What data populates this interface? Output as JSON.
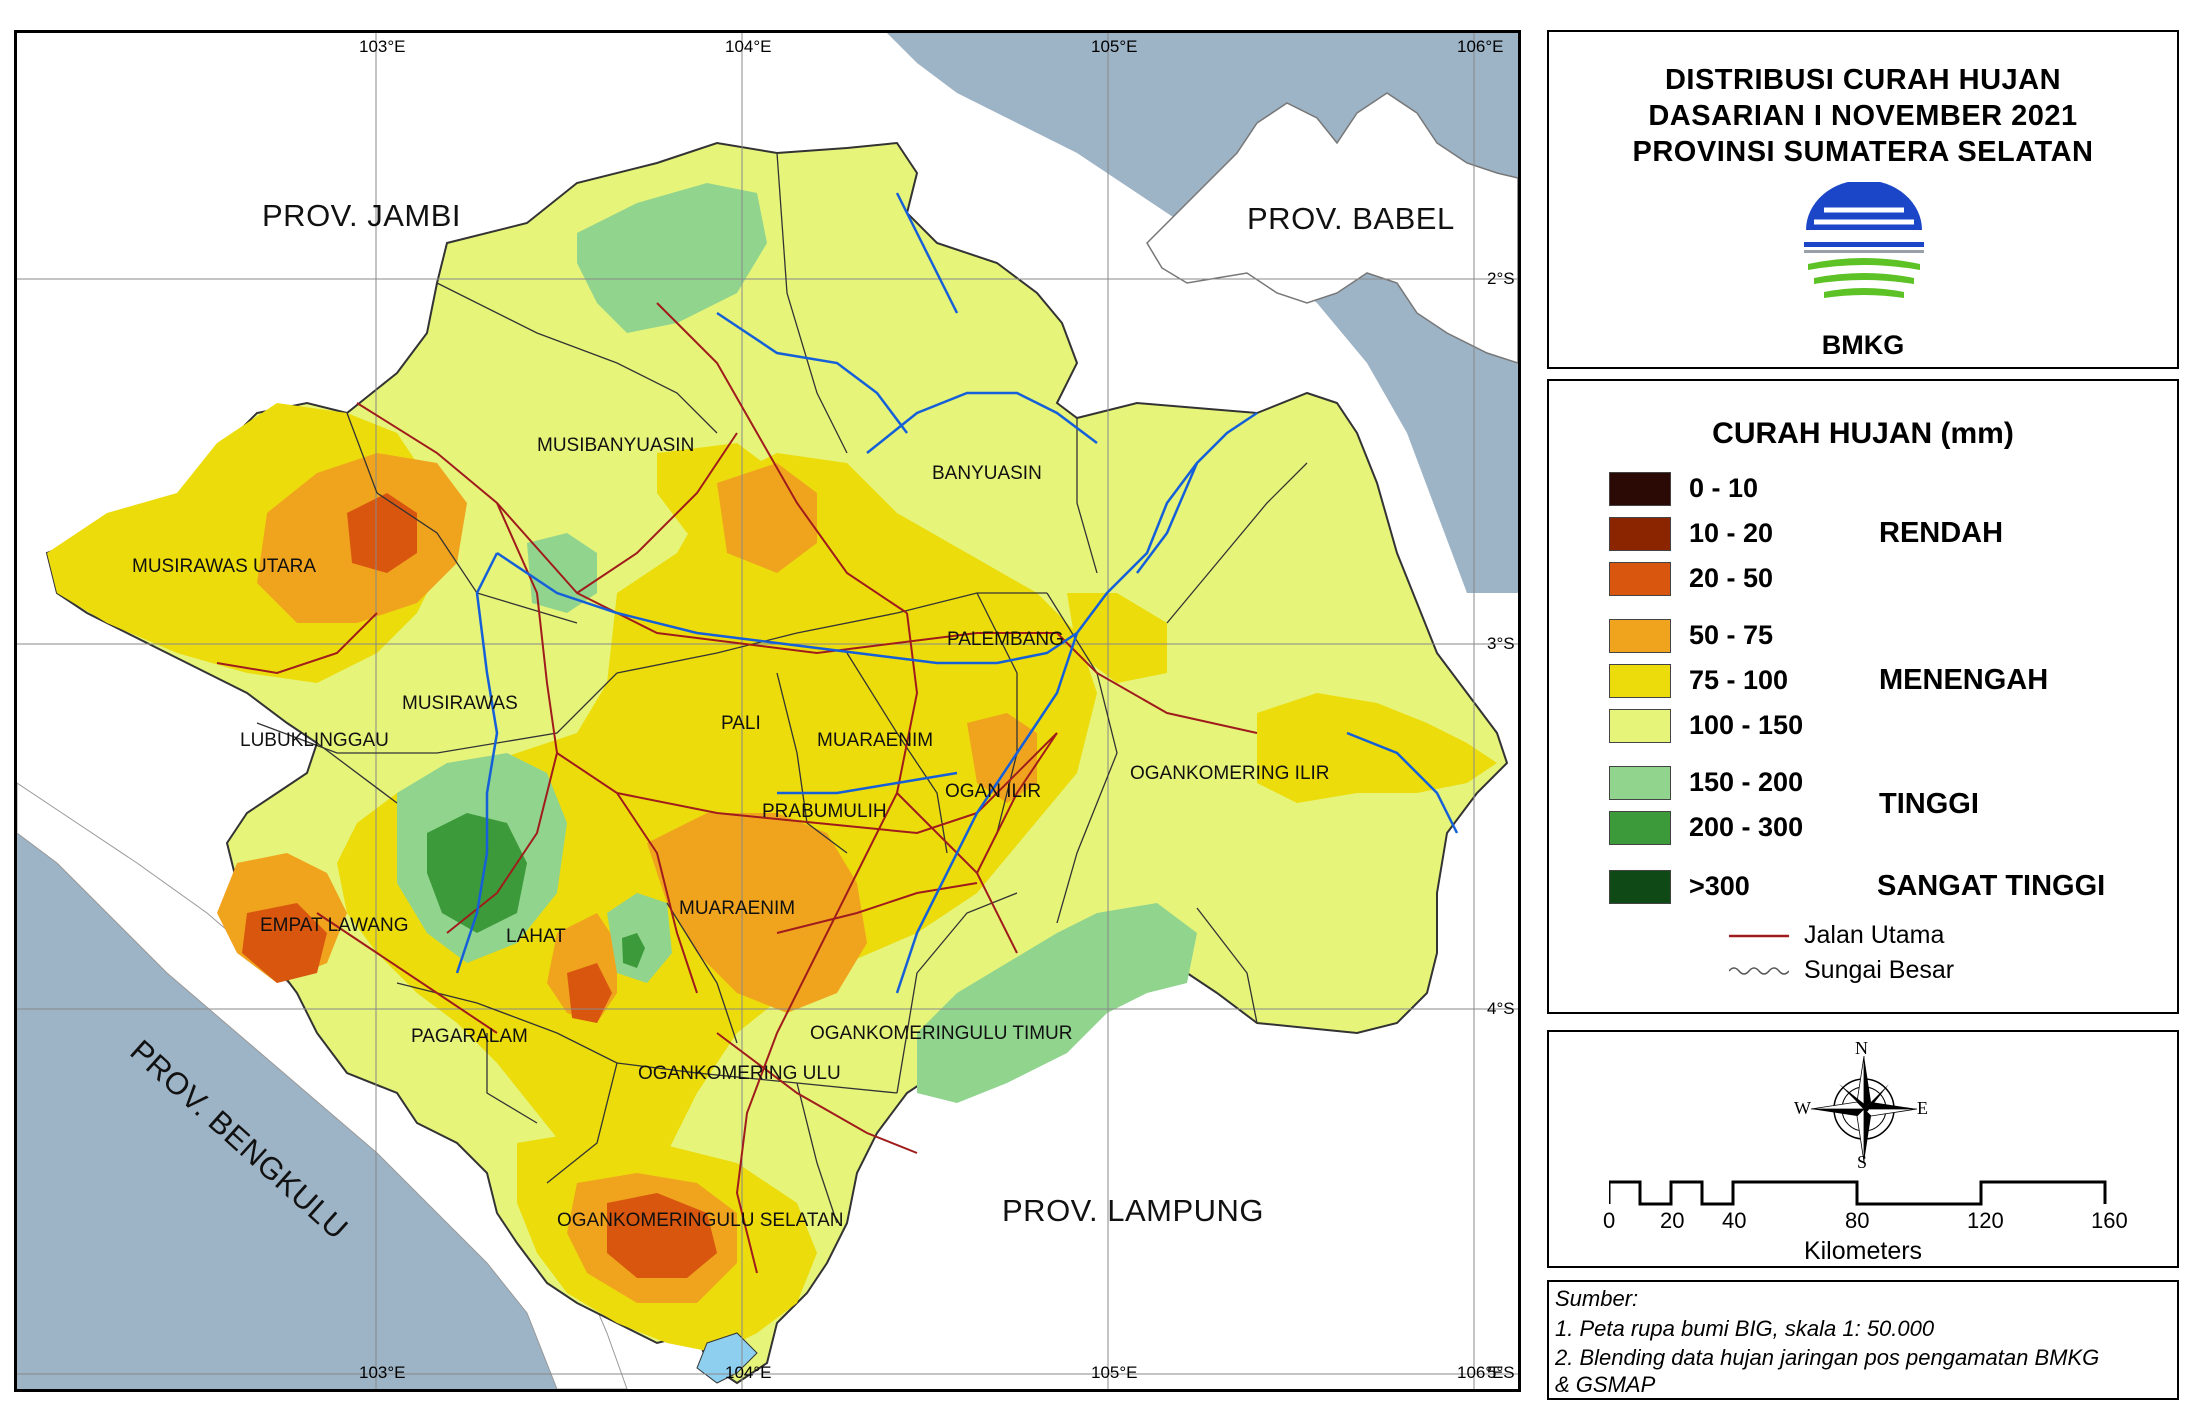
{
  "title": {
    "line1": "DISTRIBUSI CURAH HUJAN",
    "line2": "DASARIAN I NOVEMBER 2021",
    "line3": "PROVINSI SUMATERA SELATAN",
    "logo_text": "BMKG"
  },
  "coordinates": {
    "lon_labels": [
      "103°E",
      "104°E",
      "105°E",
      "106°E"
    ],
    "lat_labels": [
      "2°S",
      "3°S",
      "4°S",
      "5°S"
    ]
  },
  "provinces": {
    "jambi": "PROV. JAMBI",
    "babel": "PROV. BABEL",
    "bengkulu": "PROV. BENGKULU",
    "lampung": "PROV. LAMPUNG"
  },
  "regions": {
    "musibanyuasin": "MUSIBANYUASIN",
    "banyuasin": "BANYUASIN",
    "musirawas_utara": "MUSIRAWAS UTARA",
    "palembang": "PALEMBANG",
    "musirawas": "MUSIRAWAS",
    "lubuklinggau": "LUBUKLINGGAU",
    "pali": "PALI",
    "muaraenim_north": "MUARAENIM",
    "prabumulih": "PRABUMULIH",
    "ogan_ilir": "OGAN ILIR",
    "ogankomering_ilir": "OGANKOMERING ILIR",
    "empat_lawang": "EMPAT LAWANG",
    "lahat": "LAHAT",
    "muaraenim": "MUARAENIM",
    "pagaralam": "PAGARALAM",
    "okut": "OGANKOMERINGULU TIMUR",
    "oku": "OGANKOMERING ULU",
    "okus": "OGANKOMERINGULU SELATAN"
  },
  "legend": {
    "title": "CURAH HUJAN (mm)",
    "items": [
      {
        "label": "0 - 10",
        "color": "#2b0a06"
      },
      {
        "label": "10 - 20",
        "color": "#8b2500"
      },
      {
        "label": "20 - 50",
        "color": "#d9560f"
      },
      {
        "label": "50 - 75",
        "color": "#f0a41e"
      },
      {
        "label": "75 - 100",
        "color": "#ecdc0c"
      },
      {
        "label": "100 - 150",
        "color": "#e6f47a"
      },
      {
        "label": "150 - 200",
        "color": "#90d48e"
      },
      {
        "label": "200 - 300",
        "color": "#3d9a3a"
      },
      {
        "label": ">300",
        "color": "#0f4a16"
      }
    ],
    "classes": {
      "rendah": "RENDAH",
      "menengah": "MENENGAH",
      "tinggi": "TINGGI",
      "sangat_tinggi": "SANGAT TINGGI"
    },
    "road_label": "Jalan Utama",
    "river_label": "Sungai Besar",
    "road_color": "#a01c1c",
    "river_color": "#1560d8"
  },
  "compass": {
    "n": "N",
    "s": "S",
    "e": "E",
    "w": "W"
  },
  "scale": {
    "ticks": [
      "0",
      "20",
      "40",
      "80",
      "120",
      "160"
    ],
    "unit": "Kilometers"
  },
  "source": {
    "heading": "Sumber:",
    "line1": "1. Peta rupa bumi BIG, skala 1: 50.000",
    "line2": "2. Blending data hujan jaringan pos pengamatan BMKG",
    "line3": "& GSMAP"
  }
}
